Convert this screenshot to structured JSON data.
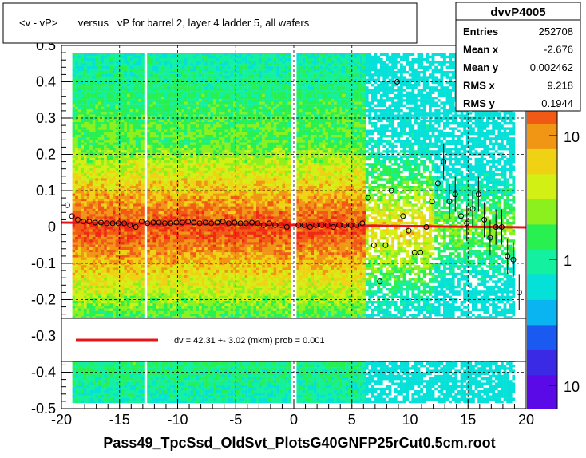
{
  "title": "<v - vP>       versus   vP for barrel 2, layer 4 ladder 5, all wafers",
  "xlabel": "Pass49_TpcSsd_OldSvt_PlotsG40GNFP25rCut0.5cm.root",
  "stats": {
    "name": "dvvP4005",
    "rows": [
      {
        "label": "Entries",
        "value": "252708"
      },
      {
        "label": "Mean x",
        "value": "-2.676"
      },
      {
        "label": "Mean y",
        "value": "0.002462"
      },
      {
        "label": "RMS x",
        "value": "9.218"
      },
      {
        "label": "RMS y",
        "value": "0.1944"
      }
    ]
  },
  "fit_legend": "dv =   42.31 +-  3.02 (mkm) prob = 0.001",
  "colors": {
    "fit_line": "#e8141a",
    "palette": [
      "#5a0ae6",
      "#3a2ae6",
      "#1a5af0",
      "#0ab4f0",
      "#05e0d8",
      "#12f0a0",
      "#28f050",
      "#8cf01e",
      "#d2f014",
      "#f0d214",
      "#f09614",
      "#f05a14",
      "#f02814"
    ]
  },
  "chart_data": {
    "type": "heatmap",
    "title": "<v - vP>       versus   vP for barrel 2, layer 4 ladder 5, all wafers",
    "xlabel": "Pass49_TpcSsd_OldSvt_PlotsG40GNFP25rCut0.5cm.root",
    "ylabel": "",
    "xlim": [
      -20,
      20
    ],
    "ylim": [
      -0.5,
      0.5
    ],
    "x_ticks": [
      "-20",
      "-15",
      "-10",
      "-5",
      "0",
      "5",
      "10",
      "15",
      "20"
    ],
    "y_ticks": [
      "-0.5",
      "-0.4",
      "-0.3",
      "-0.2",
      "-0.1",
      "0",
      "0.1",
      "0.2",
      "0.3",
      "0.4",
      "0.5"
    ],
    "z_scale": "log",
    "z_ticks": [
      "10",
      "1",
      "10"
    ],
    "grid": true,
    "profile_points": [
      {
        "x": -19.5,
        "y": 0.06
      },
      {
        "x": -19.1,
        "y": 0.03
      },
      {
        "x": -18.6,
        "y": 0.02
      },
      {
        "x": -18.1,
        "y": 0.015
      },
      {
        "x": -17.6,
        "y": 0.015
      },
      {
        "x": -17.1,
        "y": 0.012
      },
      {
        "x": -16.6,
        "y": 0.012
      },
      {
        "x": -16.1,
        "y": 0.01
      },
      {
        "x": -15.6,
        "y": 0.01
      },
      {
        "x": -15.1,
        "y": 0.01
      },
      {
        "x": -14.6,
        "y": 0.01
      },
      {
        "x": -14.1,
        "y": 0.005
      },
      {
        "x": -13.6,
        "y": 0.0
      },
      {
        "x": -13.1,
        "y": 0.015
      },
      {
        "x": -12.6,
        "y": 0.01
      },
      {
        "x": -12.1,
        "y": 0.012
      },
      {
        "x": -11.6,
        "y": 0.012
      },
      {
        "x": -11.1,
        "y": 0.01
      },
      {
        "x": -10.6,
        "y": 0.01
      },
      {
        "x": -10.1,
        "y": 0.012
      },
      {
        "x": -9.6,
        "y": 0.012
      },
      {
        "x": -9.1,
        "y": 0.015
      },
      {
        "x": -8.6,
        "y": 0.012
      },
      {
        "x": -8.1,
        "y": 0.01
      },
      {
        "x": -7.6,
        "y": 0.012
      },
      {
        "x": -7.1,
        "y": 0.01
      },
      {
        "x": -6.6,
        "y": 0.012
      },
      {
        "x": -6.1,
        "y": 0.015
      },
      {
        "x": -5.6,
        "y": 0.01
      },
      {
        "x": -5.1,
        "y": 0.012
      },
      {
        "x": -4.6,
        "y": 0.01
      },
      {
        "x": -4.1,
        "y": 0.01
      },
      {
        "x": -3.6,
        "y": 0.012
      },
      {
        "x": -3.1,
        "y": 0.01
      },
      {
        "x": -2.6,
        "y": 0.005
      },
      {
        "x": -2.1,
        "y": 0.01
      },
      {
        "x": -1.6,
        "y": 0.005
      },
      {
        "x": -1.1,
        "y": 0.005
      },
      {
        "x": -0.6,
        "y": 0.0
      },
      {
        "x": 0.4,
        "y": 0.005
      },
      {
        "x": 0.9,
        "y": 0.005
      },
      {
        "x": 1.4,
        "y": 0.0
      },
      {
        "x": 1.9,
        "y": 0.005
      },
      {
        "x": 2.4,
        "y": 0.005
      },
      {
        "x": 2.9,
        "y": 0.005
      },
      {
        "x": 3.4,
        "y": 0.0
      },
      {
        "x": 3.9,
        "y": 0.005
      },
      {
        "x": 4.4,
        "y": 0.005
      },
      {
        "x": 4.9,
        "y": 0.005
      },
      {
        "x": 5.4,
        "y": 0.005
      },
      {
        "x": 5.9,
        "y": 0.01
      },
      {
        "x": 6.4,
        "y": 0.08
      },
      {
        "x": 6.9,
        "y": -0.05
      },
      {
        "x": 7.4,
        "y": -0.15
      },
      {
        "x": 7.9,
        "y": -0.05
      },
      {
        "x": 8.4,
        "y": 0.1
      },
      {
        "x": 8.9,
        "y": 0.4
      },
      {
        "x": 9.4,
        "y": 0.03
      },
      {
        "x": 9.9,
        "y": -0.01
      },
      {
        "x": 10.4,
        "y": -0.07
      },
      {
        "x": 10.9,
        "y": -0.07
      },
      {
        "x": 11.4,
        "y": 0.0
      },
      {
        "x": 11.9,
        "y": 0.07
      },
      {
        "x": 12.4,
        "y": 0.12
      },
      {
        "x": 12.9,
        "y": 0.18
      },
      {
        "x": 13.4,
        "y": 0.07
      },
      {
        "x": 13.9,
        "y": 0.09
      },
      {
        "x": 14.4,
        "y": 0.03
      },
      {
        "x": 14.9,
        "y": 0.01
      },
      {
        "x": 15.4,
        "y": 0.05
      },
      {
        "x": 15.9,
        "y": 0.09
      },
      {
        "x": 16.4,
        "y": 0.02
      },
      {
        "x": 16.9,
        "y": -0.03
      },
      {
        "x": 17.4,
        "y": 0.0
      },
      {
        "x": 17.9,
        "y": 0.0
      },
      {
        "x": 18.4,
        "y": -0.08
      },
      {
        "x": 18.9,
        "y": -0.09
      },
      {
        "x": 19.4,
        "y": -0.18
      }
    ],
    "fit_line": {
      "x": [
        -20,
        20
      ],
      "y": [
        0.012,
        -0.001
      ]
    }
  }
}
